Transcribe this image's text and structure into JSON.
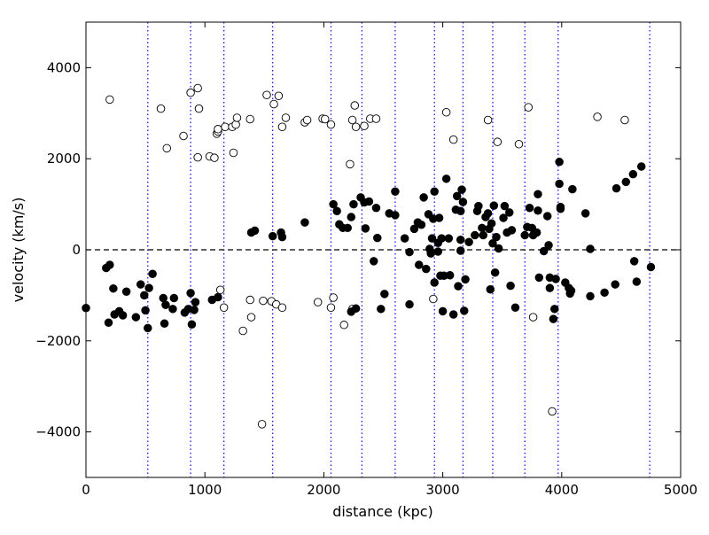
{
  "chart_data": {
    "type": "scatter",
    "xlabel": "distance (kpc)",
    "ylabel": "velocity (km/s)",
    "xlim": [
      0,
      5000
    ],
    "ylim": [
      -5000,
      5000
    ],
    "x_ticks": [
      0,
      1000,
      2000,
      3000,
      4000,
      5000
    ],
    "x_tick_labels": [
      "0",
      "1000",
      "2000",
      "3000",
      "4000",
      "5000"
    ],
    "y_ticks": [
      -4000,
      -2000,
      0,
      2000,
      4000
    ],
    "y_tick_labels": [
      "−4000",
      "−2000",
      "0",
      "2000",
      "4000"
    ],
    "grid": false,
    "zero_line": {
      "y": 0,
      "style": "dashed",
      "color": "#000000"
    },
    "vertical_lines": {
      "x": [
        520,
        880,
        1160,
        1570,
        2060,
        2320,
        2600,
        2930,
        3170,
        3420,
        3690,
        3970,
        4740
      ],
      "style": "dotted",
      "color": "#0000ff"
    },
    "series": [
      {
        "marker": "open-circle",
        "color": "#000000",
        "points": [
          [
            200,
            3300
          ],
          [
            630,
            3100
          ],
          [
            680,
            2230
          ],
          [
            820,
            2500
          ],
          [
            880,
            3450
          ],
          [
            940,
            3550
          ],
          [
            950,
            3100
          ],
          [
            940,
            2030
          ],
          [
            1040,
            2050
          ],
          [
            1080,
            2020
          ],
          [
            1100,
            2550
          ],
          [
            1110,
            2600
          ],
          [
            1110,
            2650
          ],
          [
            1170,
            2700
          ],
          [
            1230,
            2700
          ],
          [
            1240,
            2130
          ],
          [
            1260,
            2750
          ],
          [
            1270,
            2900
          ],
          [
            1380,
            2870
          ],
          [
            1520,
            3400
          ],
          [
            1580,
            3200
          ],
          [
            1620,
            3380
          ],
          [
            1650,
            2700
          ],
          [
            1680,
            2900
          ],
          [
            1840,
            2800
          ],
          [
            1860,
            2850
          ],
          [
            1990,
            2880
          ],
          [
            2010,
            2870
          ],
          [
            2060,
            2750
          ],
          [
            2220,
            1880
          ],
          [
            2240,
            2850
          ],
          [
            2260,
            3170
          ],
          [
            2270,
            2700
          ],
          [
            2340,
            2720
          ],
          [
            2390,
            2880
          ],
          [
            2440,
            2880
          ],
          [
            3030,
            3020
          ],
          [
            3090,
            2420
          ],
          [
            3380,
            2850
          ],
          [
            3460,
            2370
          ],
          [
            3640,
            2320
          ],
          [
            3720,
            3130
          ],
          [
            4300,
            2920
          ],
          [
            4530,
            2850
          ],
          [
            1130,
            -880
          ],
          [
            1160,
            -1270
          ],
          [
            1320,
            -1780
          ],
          [
            1380,
            -1100
          ],
          [
            1390,
            -1480
          ],
          [
            1490,
            -1120
          ],
          [
            1560,
            -1130
          ],
          [
            1600,
            -1200
          ],
          [
            1650,
            -1270
          ],
          [
            1950,
            -1150
          ],
          [
            2060,
            -1270
          ],
          [
            2080,
            -1050
          ],
          [
            2170,
            -1650
          ],
          [
            2240,
            -1300
          ],
          [
            2920,
            -1080
          ],
          [
            3760,
            -1480
          ],
          [
            1480,
            -3830
          ],
          [
            3920,
            -3550
          ]
        ]
      },
      {
        "marker": "filled-circle",
        "color": "#000000",
        "points": [
          [
            0,
            -1280
          ],
          [
            170,
            -400
          ],
          [
            200,
            -330
          ],
          [
            190,
            -1600
          ],
          [
            230,
            -850
          ],
          [
            240,
            -1420
          ],
          [
            280,
            -1350
          ],
          [
            310,
            -1440
          ],
          [
            340,
            -920
          ],
          [
            420,
            -1480
          ],
          [
            460,
            -760
          ],
          [
            490,
            -1000
          ],
          [
            500,
            -1330
          ],
          [
            520,
            -1720
          ],
          [
            530,
            -840
          ],
          [
            560,
            -530
          ],
          [
            650,
            -1060
          ],
          [
            660,
            -1620
          ],
          [
            670,
            -1210
          ],
          [
            730,
            -1300
          ],
          [
            740,
            -1060
          ],
          [
            830,
            -1380
          ],
          [
            860,
            -1300
          ],
          [
            880,
            -950
          ],
          [
            890,
            -1640
          ],
          [
            910,
            -1320
          ],
          [
            920,
            -1150
          ],
          [
            1060,
            -1100
          ],
          [
            1110,
            -1040
          ],
          [
            1390,
            380
          ],
          [
            1420,
            420
          ],
          [
            1570,
            300
          ],
          [
            1640,
            380
          ],
          [
            1650,
            280
          ],
          [
            1840,
            600
          ],
          [
            2080,
            1000
          ],
          [
            2110,
            850
          ],
          [
            2130,
            560
          ],
          [
            2160,
            480
          ],
          [
            2200,
            480
          ],
          [
            2230,
            720
          ],
          [
            2250,
            1000
          ],
          [
            2230,
            -1360
          ],
          [
            2270,
            -1290
          ],
          [
            2310,
            1150
          ],
          [
            2340,
            1040
          ],
          [
            2350,
            470
          ],
          [
            2380,
            1060
          ],
          [
            2420,
            -250
          ],
          [
            2440,
            920
          ],
          [
            2450,
            260
          ],
          [
            2480,
            -1300
          ],
          [
            2510,
            -970
          ],
          [
            2550,
            800
          ],
          [
            2600,
            1280
          ],
          [
            2600,
            760
          ],
          [
            2680,
            250
          ],
          [
            2720,
            -50
          ],
          [
            2720,
            -1200
          ],
          [
            2760,
            460
          ],
          [
            2790,
            600
          ],
          [
            2800,
            -330
          ],
          [
            2820,
            550
          ],
          [
            2840,
            1150
          ],
          [
            2860,
            -420
          ],
          [
            2880,
            780
          ],
          [
            2900,
            -80
          ],
          [
            2890,
            20
          ],
          [
            2910,
            250
          ],
          [
            2920,
            680
          ],
          [
            2930,
            1280
          ],
          [
            2930,
            -720
          ],
          [
            2960,
            -40
          ],
          [
            2960,
            150
          ],
          [
            2970,
            700
          ],
          [
            2980,
            -570
          ],
          [
            2990,
            250
          ],
          [
            3000,
            -1350
          ],
          [
            3010,
            -570
          ],
          [
            3030,
            1560
          ],
          [
            3050,
            250
          ],
          [
            3060,
            -560
          ],
          [
            3090,
            -1420
          ],
          [
            3110,
            880
          ],
          [
            3120,
            1180
          ],
          [
            3130,
            -800
          ],
          [
            3150,
            850
          ],
          [
            3160,
            1320
          ],
          [
            3150,
            220
          ],
          [
            3150,
            -20
          ],
          [
            3170,
            1050
          ],
          [
            3180,
            -1340
          ],
          [
            3190,
            -650
          ],
          [
            3220,
            170
          ],
          [
            3270,
            320
          ],
          [
            3290,
            850
          ],
          [
            3300,
            960
          ],
          [
            3330,
            480
          ],
          [
            3340,
            320
          ],
          [
            3360,
            720
          ],
          [
            3380,
            800
          ],
          [
            3390,
            460
          ],
          [
            3410,
            580
          ],
          [
            3400,
            -870
          ],
          [
            3420,
            140
          ],
          [
            3430,
            970
          ],
          [
            3440,
            -500
          ],
          [
            3450,
            280
          ],
          [
            3470,
            30
          ],
          [
            3510,
            700
          ],
          [
            3520,
            960
          ],
          [
            3540,
            380
          ],
          [
            3560,
            820
          ],
          [
            3570,
            -790
          ],
          [
            3580,
            430
          ],
          [
            3610,
            -1270
          ],
          [
            3690,
            320
          ],
          [
            3710,
            500
          ],
          [
            3730,
            920
          ],
          [
            3750,
            480
          ],
          [
            3760,
            320
          ],
          [
            3790,
            380
          ],
          [
            3800,
            1220
          ],
          [
            3800,
            860
          ],
          [
            3810,
            -610
          ],
          [
            3850,
            -30
          ],
          [
            3880,
            740
          ],
          [
            3890,
            100
          ],
          [
            3900,
            -610
          ],
          [
            3900,
            -840
          ],
          [
            3940,
            -1300
          ],
          [
            3930,
            -1520
          ],
          [
            3950,
            -640
          ],
          [
            3980,
            1930
          ],
          [
            3980,
            1450
          ],
          [
            3990,
            900
          ],
          [
            3990,
            940
          ],
          [
            4030,
            -720
          ],
          [
            4060,
            -840
          ],
          [
            4070,
            -960
          ],
          [
            4080,
            -900
          ],
          [
            4090,
            1330
          ],
          [
            4200,
            800
          ],
          [
            4240,
            20
          ],
          [
            4240,
            -1020
          ],
          [
            4360,
            -940
          ],
          [
            4450,
            -760
          ],
          [
            4460,
            1350
          ],
          [
            4540,
            1490
          ],
          [
            4600,
            1660
          ],
          [
            4610,
            -250
          ],
          [
            4630,
            -700
          ],
          [
            4670,
            1830
          ],
          [
            4750,
            -380
          ]
        ]
      }
    ]
  }
}
